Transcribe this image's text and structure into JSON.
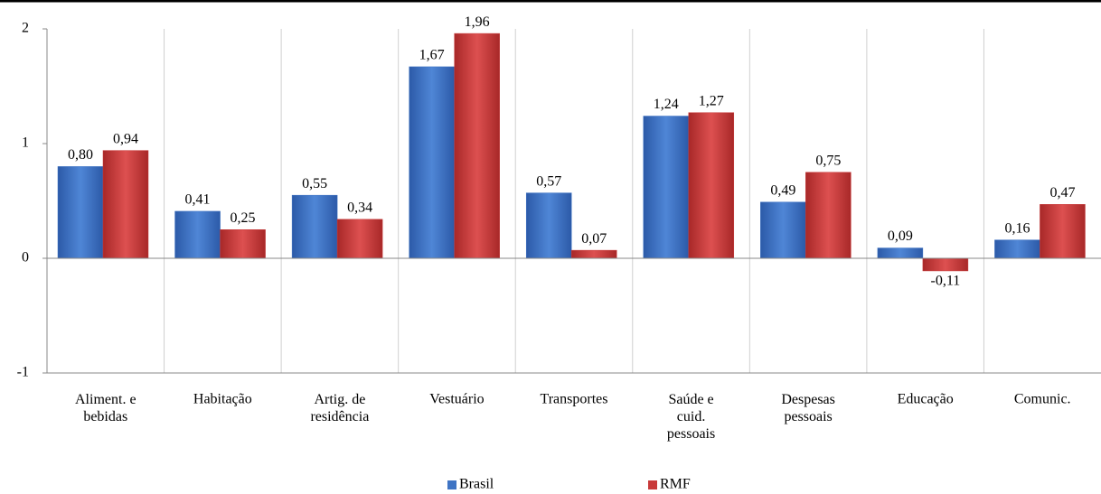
{
  "chart_data": {
    "type": "bar",
    "categories": [
      "Aliment. e\nbebidas",
      "Habitação",
      "Artig. de\nresidência",
      "Vestuário",
      "Transportes",
      "Saúde e\ncuid.\npessoais",
      "Despesas\npessoais",
      "Educação",
      "Comunic."
    ],
    "series": [
      {
        "name": "Brasil",
        "color": "#3f74c4",
        "values": [
          0.8,
          0.41,
          0.55,
          1.67,
          0.57,
          1.24,
          0.49,
          0.09,
          0.16
        ],
        "value_labels": [
          "0,80",
          "0,41",
          "0,55",
          "1,67",
          "0,57",
          "1,24",
          "0,49",
          "0,09",
          "0,16"
        ]
      },
      {
        "name": "RMF",
        "color": "#c83a3a",
        "values": [
          0.94,
          0.25,
          0.34,
          1.96,
          0.07,
          1.27,
          0.75,
          -0.11,
          0.47
        ],
        "value_labels": [
          "0,94",
          "0,25",
          "0,34",
          "1,96",
          "0,07",
          "1,27",
          "0,75",
          "-0,11",
          "0,47"
        ]
      }
    ],
    "ylim": [
      -1,
      2
    ],
    "yticks": [
      -1,
      0,
      1,
      2
    ],
    "legend": "bottom"
  }
}
